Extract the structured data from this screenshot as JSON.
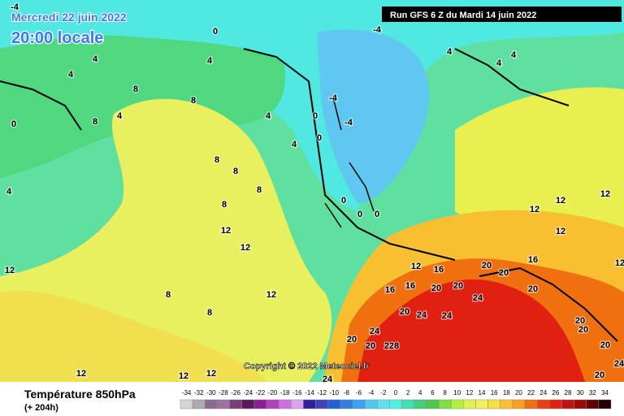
{
  "header": {
    "date": "Mercredi 22 juin 2022",
    "time": "20:00 locale",
    "run": "Run GFS 6 Z du Mardi 14 juin 2022"
  },
  "copyright": "Copyright © 2022 Meteociel.fr",
  "legend": {
    "title": "Température 850hPa",
    "subtitle": "(+ 204h)",
    "values": [
      -34,
      -32,
      -30,
      -28,
      -26,
      -24,
      -22,
      -20,
      -18,
      -16,
      -14,
      -12,
      -10,
      -8,
      -6,
      -4,
      -2,
      0,
      2,
      4,
      6,
      8,
      10,
      12,
      14,
      16,
      18,
      20,
      22,
      24,
      26,
      28,
      30,
      32,
      34
    ],
    "colors": [
      "#d4d4d4",
      "#ababab",
      "#8c6c8c",
      "#a070a0",
      "#7a3c7a",
      "#5a1a5a",
      "#8a2090",
      "#b040c0",
      "#d070e0",
      "#e0a0f0",
      "#3020a0",
      "#4040c0",
      "#2060d0",
      "#3080e0",
      "#40a0f0",
      "#50c8f0",
      "#60e0f0",
      "#50f0e0",
      "#40e0b0",
      "#40d080",
      "#50c850",
      "#80e040",
      "#b0f040",
      "#e0f050",
      "#f0f060",
      "#f8e040",
      "#f8c030",
      "#f8a020",
      "#f07010",
      "#e84010",
      "#e02010",
      "#c01010",
      "#a00808",
      "#600000",
      "#200000"
    ]
  },
  "contour_labels": [
    -4,
    0,
    -4,
    4,
    4,
    4,
    4,
    4,
    4,
    8,
    8,
    8,
    4,
    4,
    0,
    -4,
    -4,
    0,
    4,
    0,
    8,
    8,
    8,
    4,
    8,
    12,
    12,
    0,
    0,
    0,
    12,
    12,
    12,
    12,
    12,
    16,
    20,
    20,
    20,
    24,
    16,
    20,
    16,
    16,
    20,
    20,
    24,
    24,
    24,
    20,
    20,
    228,
    20,
    20,
    20,
    12,
    12,
    8,
    12,
    8,
    12,
    12,
    12,
    24,
    20,
    24
  ]
}
